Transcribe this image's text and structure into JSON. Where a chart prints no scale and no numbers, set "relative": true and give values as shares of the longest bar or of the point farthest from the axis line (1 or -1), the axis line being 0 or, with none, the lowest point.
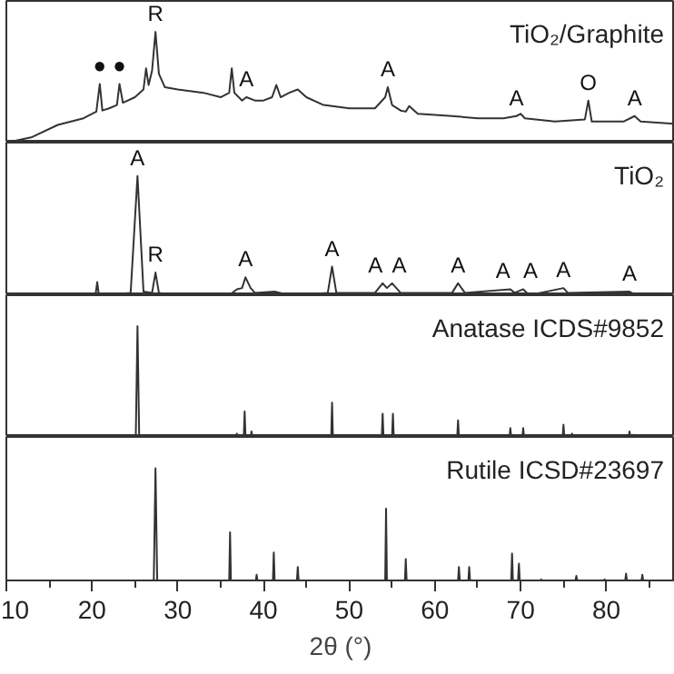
{
  "chart_data": [
    {
      "type": "line",
      "title": "TiO₂/Graphite",
      "relative": true,
      "xlim": [
        10,
        88
      ],
      "tick_labels": false,
      "grid": false,
      "color": "#333333",
      "x": [
        10,
        13,
        16,
        19,
        20.5,
        20.9,
        21.2,
        22,
        22.9,
        23.2,
        23.6,
        25,
        26,
        26.3,
        26.6,
        27,
        27.4,
        27.8,
        28.5,
        30,
        33,
        35,
        36,
        36.3,
        36.6,
        37.5,
        38,
        39,
        40,
        41,
        41.5,
        42,
        43,
        44,
        45,
        47,
        50,
        53,
        54.2,
        54.5,
        55,
        56,
        56.6,
        57,
        58,
        62,
        65,
        68,
        69.5,
        70,
        70.5,
        74,
        77.5,
        77.9,
        78.3,
        82,
        83.3,
        84,
        88
      ],
      "values": [
        0,
        0.05,
        0.16,
        0.22,
        0.28,
        0.53,
        0.29,
        0.31,
        0.34,
        0.53,
        0.36,
        0.41,
        0.48,
        0.67,
        0.52,
        0.65,
        1.0,
        0.62,
        0.5,
        0.48,
        0.45,
        0.41,
        0.45,
        0.67,
        0.45,
        0.38,
        0.41,
        0.38,
        0.38,
        0.41,
        0.52,
        0.41,
        0.45,
        0.48,
        0.41,
        0.34,
        0.31,
        0.31,
        0.41,
        0.5,
        0.34,
        0.29,
        0.28,
        0.33,
        0.26,
        0.24,
        0.22,
        0.22,
        0.24,
        0.26,
        0.22,
        0.19,
        0.21,
        0.38,
        0.19,
        0.19,
        0.24,
        0.19,
        0.17
      ],
      "annotations": [
        {
          "text": "●",
          "x": 20.9,
          "y": 0.53
        },
        {
          "text": "●",
          "x": 23.2,
          "y": 0.53
        },
        {
          "text": "R",
          "x": 27.4,
          "y": 1.0
        },
        {
          "text": "A",
          "x": 38,
          "y": 0.41
        },
        {
          "text": "A",
          "x": 54.5,
          "y": 0.5
        },
        {
          "text": "A",
          "x": 69.5,
          "y": 0.24
        },
        {
          "text": "O",
          "x": 77.9,
          "y": 0.38
        },
        {
          "text": "A",
          "x": 83.3,
          "y": 0.24
        }
      ]
    },
    {
      "type": "line",
      "title": "TiO₂",
      "relative": true,
      "xlim": [
        10,
        88
      ],
      "tick_labels": false,
      "grid": false,
      "color": "#333333",
      "x": [
        10,
        20,
        20.4,
        20.6,
        20.8,
        24.5,
        25.3,
        26,
        27,
        27.4,
        27.8,
        30,
        36,
        36.9,
        37.5,
        37.9,
        38.5,
        39,
        41.3,
        43,
        47.5,
        48,
        48.5,
        53,
        53.9,
        54.4,
        55,
        56,
        62,
        62.7,
        63.5,
        68.8,
        69.3,
        70.3,
        71,
        75,
        75.5,
        82.7,
        83.5,
        88
      ],
      "values": [
        0,
        0,
        0,
        0.11,
        0,
        0.02,
        1.0,
        0.03,
        0.02,
        0.19,
        0.02,
        0,
        0,
        0.05,
        0.06,
        0.15,
        0.06,
        0.02,
        0.03,
        0,
        0.02,
        0.24,
        0.02,
        0.02,
        0.1,
        0.06,
        0.1,
        0.02,
        0.02,
        0.1,
        0.02,
        0.05,
        0.02,
        0.05,
        0,
        0.06,
        0.02,
        0.03,
        0,
        0
      ],
      "annotations": [
        {
          "text": "A",
          "x": 25.3,
          "y": 1.0
        },
        {
          "text": "R",
          "x": 27.4,
          "y": 0.19
        },
        {
          "text": "A",
          "x": 37.9,
          "y": 0.15
        },
        {
          "text": "A",
          "x": 48.0,
          "y": 0.24
        },
        {
          "text": "A",
          "x": 53.9,
          "y": 0.1
        },
        {
          "text": "A",
          "x": 55.0,
          "y": 0.1
        },
        {
          "text": "A",
          "x": 62.7,
          "y": 0.1
        },
        {
          "text": "A",
          "x": 68.8,
          "y": 0.05
        },
        {
          "text": "A",
          "x": 70.3,
          "y": 0.05
        },
        {
          "text": "A",
          "x": 75.0,
          "y": 0.06
        },
        {
          "text": "A",
          "x": 82.7,
          "y": 0.03
        }
      ]
    },
    {
      "type": "line",
      "title": "Anatase ICDS#9852",
      "relative": true,
      "xlim": [
        10,
        88
      ],
      "tick_labels": false,
      "grid": false,
      "color": "#333333",
      "x": [
        10,
        25.1,
        25.3,
        25.5,
        36.8,
        36.9,
        37.0,
        37.7,
        37.8,
        37.9,
        38.5,
        38.6,
        38.7,
        47.9,
        48.0,
        48.1,
        53.8,
        53.9,
        54.0,
        55.0,
        55.1,
        55.2,
        62.6,
        62.7,
        62.8,
        68.7,
        68.8,
        68.9,
        70.2,
        70.3,
        70.4,
        74.9,
        75.0,
        75.1,
        75.9,
        76.0,
        76.1,
        82.6,
        82.7,
        82.8,
        83.1,
        83.2,
        83.3,
        88
      ],
      "values": [
        0,
        0,
        1.0,
        0,
        0,
        0.03,
        0,
        0,
        0.23,
        0,
        0,
        0.05,
        0,
        0,
        0.31,
        0,
        0,
        0.21,
        0,
        0,
        0.21,
        0,
        0,
        0.15,
        0,
        0,
        0.08,
        0,
        0,
        0.08,
        0,
        0,
        0.11,
        0,
        0,
        0.03,
        0,
        0,
        0.05,
        0,
        0,
        0.02,
        0,
        0
      ]
    },
    {
      "type": "line",
      "title": "Rutile ICSD#23697",
      "relative": true,
      "xlim": [
        10,
        88
      ],
      "tick_labels": "x",
      "grid": false,
      "color": "#333333",
      "xlabel": "2θ (°)",
      "xticks": [
        10,
        {
          "value": 15,
          "label": null
        },
        20,
        {
          "value": 25,
          "label": null
        },
        30,
        {
          "value": 35,
          "label": null
        },
        40,
        {
          "value": 45,
          "label": null
        },
        50,
        {
          "value": 55,
          "label": null
        },
        60,
        {
          "value": 65,
          "label": null
        },
        70,
        {
          "value": 75,
          "label": null
        },
        80,
        {
          "value": 85,
          "label": null
        }
      ],
      "x": [
        10,
        27.2,
        27.4,
        27.6,
        36.0,
        36.1,
        36.2,
        39.1,
        39.2,
        39.3,
        41.1,
        41.2,
        41.3,
        43.9,
        44.0,
        44.1,
        54.2,
        54.3,
        54.4,
        56.5,
        56.6,
        56.7,
        62.7,
        62.8,
        62.9,
        63.9,
        64.0,
        64.1,
        68.9,
        69.0,
        69.1,
        69.7,
        69.8,
        69.9,
        72.3,
        72.4,
        72.5,
        76.4,
        76.5,
        76.6,
        79.7,
        79.8,
        79.9,
        82.2,
        82.3,
        82.4,
        84.1,
        84.2,
        84.3,
        88
      ],
      "values": [
        0,
        0,
        1.0,
        0,
        0,
        0.43,
        0,
        0,
        0.05,
        0,
        0,
        0.25,
        0,
        0,
        0.12,
        0,
        0,
        0.64,
        0,
        0,
        0.19,
        0,
        0,
        0.12,
        0,
        0,
        0.12,
        0,
        0,
        0.24,
        0,
        0,
        0.15,
        0,
        0,
        0.01,
        0,
        0,
        0.04,
        0,
        0,
        0.01,
        0,
        0,
        0.06,
        0,
        0,
        0.05,
        0,
        0
      ]
    }
  ]
}
